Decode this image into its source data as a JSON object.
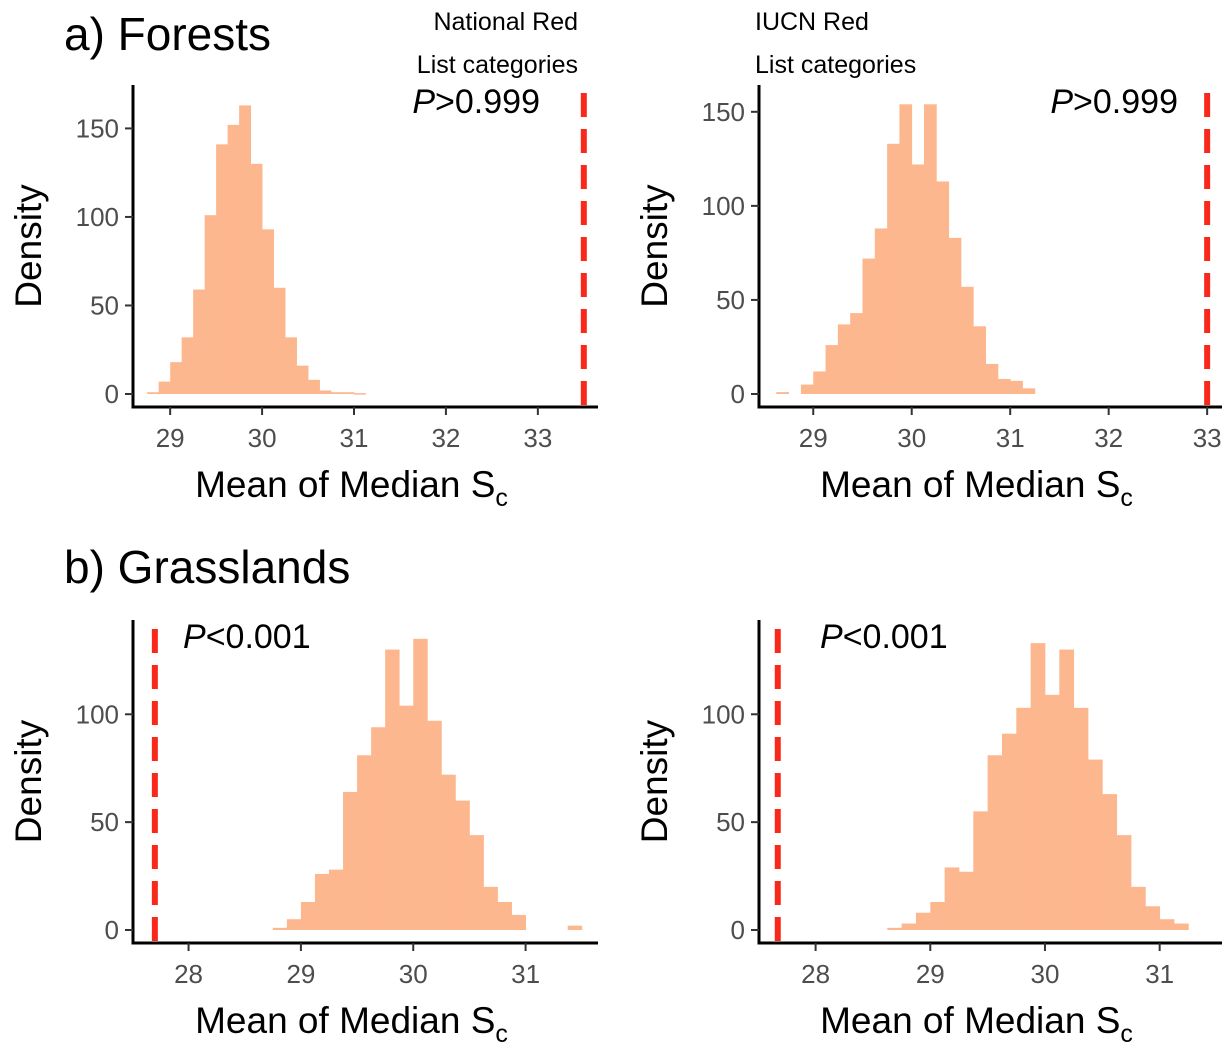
{
  "sections": [
    {
      "title": "a) Forests"
    },
    {
      "title": "b) Grasslands"
    }
  ],
  "colors": {
    "bars": "#fdb78e",
    "observed_line": "#f8281a"
  },
  "chart_data": [
    {
      "type": "bar",
      "section": "a) Forests",
      "column_title": "National Red\nList categories",
      "xlabel": "Mean of Median S",
      "xlabel_subscript": "c",
      "ylabel": "Density",
      "xlim": [
        28.65,
        33.6
      ],
      "ylim": [
        0,
        170
      ],
      "xticks": [
        29,
        30,
        31,
        32,
        33
      ],
      "yticks": [
        0,
        50,
        100,
        150
      ],
      "bin_width": 0.125,
      "bins_start": 28.75,
      "densities": [
        1,
        7,
        18,
        32,
        59,
        101,
        141,
        152,
        163,
        130,
        93,
        60,
        32,
        16,
        8,
        2,
        1,
        1,
        0.5
      ],
      "observed_value": 33.5,
      "p_label": "P",
      "p_text": ">0.999"
    },
    {
      "type": "bar",
      "section": "a) Forests",
      "column_title": "IUCN Red\nList categories",
      "xlabel": "Mean of Median S",
      "xlabel_subscript": "c",
      "ylabel": "Density",
      "xlim": [
        28.5,
        33.1
      ],
      "ylim": [
        0,
        160
      ],
      "xticks": [
        29,
        30,
        31,
        32,
        33
      ],
      "yticks": [
        0,
        50,
        100,
        150
      ],
      "bin_width": 0.125,
      "bins_start": 28.875,
      "densities": [
        5,
        12,
        26,
        37,
        43,
        72,
        88,
        133,
        154,
        122,
        154,
        113,
        83,
        57,
        36,
        16,
        8,
        7,
        3
      ],
      "extra_bins": [
        {
          "x": 28.625,
          "value": 1
        }
      ],
      "observed_value": 33.0,
      "p_label": "P",
      "p_text": ">0.999"
    },
    {
      "type": "bar",
      "section": "b) Grasslands",
      "column_title": "",
      "xlabel": "Mean of Median S",
      "xlabel_subscript": "c",
      "ylabel": "Density",
      "xlim": [
        27.55,
        31.6
      ],
      "ylim": [
        0,
        140
      ],
      "xticks": [
        28,
        29,
        30,
        31
      ],
      "yticks": [
        0,
        50,
        100
      ],
      "bin_width": 0.125,
      "bins_start": 28.75,
      "densities": [
        1,
        5,
        13,
        26,
        28,
        64,
        81,
        94,
        130,
        104,
        135,
        97,
        72,
        60,
        44,
        20,
        13,
        7
      ],
      "extra_bins": [
        {
          "x": 31.375,
          "value": 2
        }
      ],
      "observed_value": 27.7,
      "p_label": "P",
      "p_text": "<0.001"
    },
    {
      "type": "bar",
      "section": "b) Grasslands",
      "column_title": "",
      "xlabel": "Mean of Median S",
      "xlabel_subscript": "c",
      "ylabel": "Density",
      "xlim": [
        27.55,
        31.5
      ],
      "ylim": [
        0,
        140
      ],
      "xticks": [
        28,
        29,
        30,
        31
      ],
      "yticks": [
        0,
        50,
        100
      ],
      "bin_width": 0.125,
      "bins_start": 28.625,
      "densities": [
        1,
        3,
        8,
        13,
        29,
        27,
        55,
        81,
        91,
        103,
        133,
        109,
        130,
        103,
        79,
        63,
        44,
        20,
        11,
        5,
        3
      ],
      "observed_value": 27.67,
      "p_label": "P",
      "p_text": "<0.001"
    }
  ]
}
